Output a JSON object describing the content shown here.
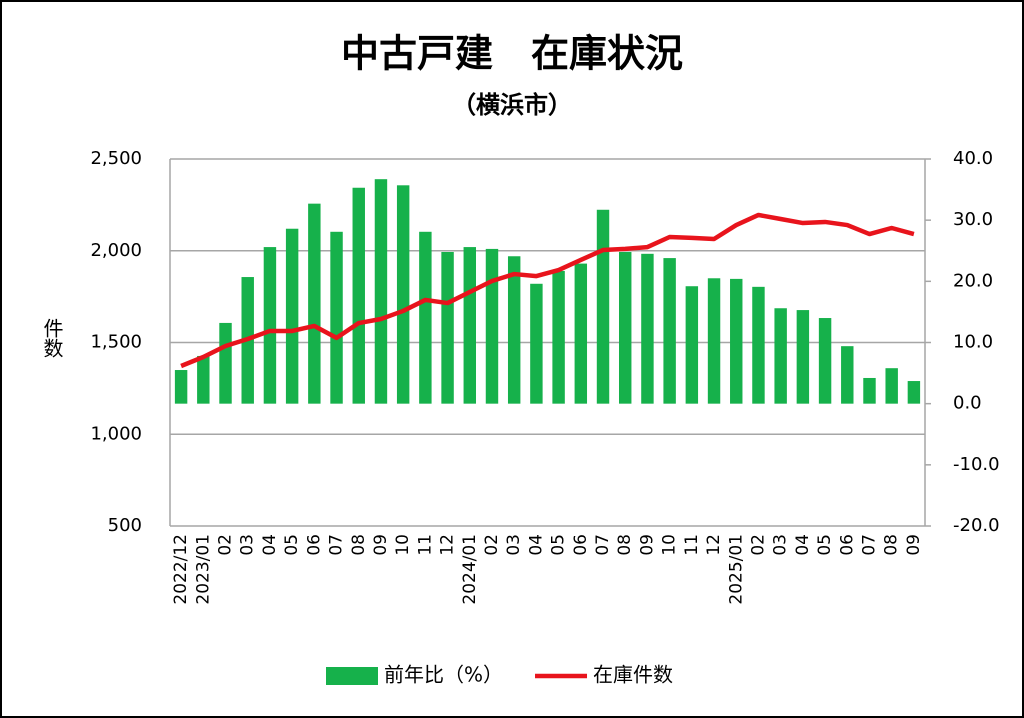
{
  "chart_data": {
    "type": "bar_line",
    "title": "中古戸建　在庫状況",
    "subtitle": "（横浜市）",
    "y_label": "件数",
    "categories": [
      "2022/12",
      "2023/01",
      "02",
      "03",
      "04",
      "05",
      "06",
      "07",
      "08",
      "09",
      "10",
      "11",
      "12",
      "2024/01",
      "02",
      "03",
      "04",
      "05",
      "06",
      "07",
      "08",
      "09",
      "10",
      "11",
      "12",
      "2025/01",
      "02",
      "03",
      "04",
      "05",
      "06",
      "07",
      "08",
      "09"
    ],
    "series": [
      {
        "name": "前年比（%）",
        "type": "bar",
        "axis": "y2",
        "color": "#16b14b",
        "values": [
          5.5,
          7.8,
          13.2,
          20.7,
          25.6,
          28.6,
          32.7,
          28.1,
          35.3,
          36.7,
          35.7,
          28.1,
          24.8,
          25.6,
          25.3,
          24.1,
          19.6,
          21.7,
          22.9,
          31.7,
          24.8,
          24.5,
          23.8,
          19.2,
          20.5,
          20.4,
          19.1,
          15.6,
          15.3,
          14.0,
          9.4,
          4.2,
          5.8,
          3.7
        ]
      },
      {
        "name": "在庫件数",
        "type": "line",
        "color": "#e8141c",
        "values": [
          1372,
          1421,
          1481,
          1519,
          1563,
          1563,
          1590,
          1525,
          1606,
          1628,
          1672,
          1732,
          1715,
          1775,
          1835,
          1873,
          1862,
          1895,
          1950,
          2004,
          2010,
          2020,
          2075,
          2070,
          2064,
          2140,
          2195,
          2173,
          2151,
          2157,
          2140,
          2091,
          2124,
          2091
        ]
      }
    ],
    "ylim": [
      500,
      2500
    ],
    "yticks": [
      {
        "value": 500,
        "label": "500"
      },
      {
        "value": 1000,
        "label": "1,000"
      },
      {
        "value": 1500,
        "label": "1,500"
      },
      {
        "value": 2000,
        "label": "2,000"
      },
      {
        "value": 2500,
        "label": "2,500"
      }
    ],
    "y2lim": [
      -20,
      40
    ],
    "y2ticks": [
      {
        "value": -20,
        "label": "-20.0"
      },
      {
        "value": -10,
        "label": "-10.0"
      },
      {
        "value": 0,
        "label": "0.0"
      },
      {
        "value": 10,
        "label": "10.0"
      },
      {
        "value": 20,
        "label": "20.0"
      },
      {
        "value": 30,
        "label": "30.0"
      },
      {
        "value": 40,
        "label": "40.0"
      }
    ],
    "negative_tick_color": "#d71920",
    "grid": true,
    "legend": "bottom"
  }
}
